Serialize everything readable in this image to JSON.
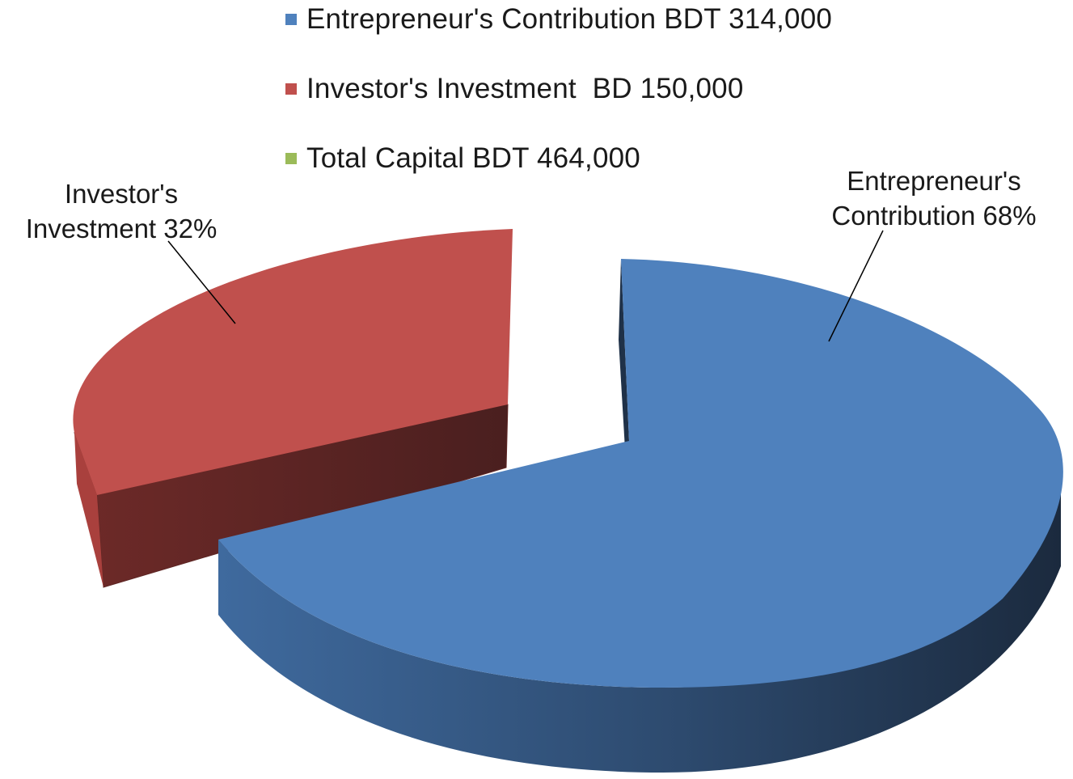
{
  "colors": {
    "entrepreneur": "#4f81bd",
    "entrepreneur_side_light": "#3f6a9e",
    "entrepreneur_side_dark": "#1f3148",
    "investor": "#c0504d",
    "investor_side": "#552323",
    "total": "#9bbb59"
  },
  "legend": {
    "items": [
      {
        "label": "Entrepreneur's Contribution BDT 314,000",
        "color": "#4f81bd"
      },
      {
        "label": "Investor's Investment  BD 150,000",
        "color": "#c0504d"
      },
      {
        "label": "Total Capital BDT 464,000",
        "color": "#9bbb59"
      }
    ]
  },
  "labels": {
    "investor": {
      "line1": "Investor's",
      "line2": "Investment 32%"
    },
    "entrepreneur": {
      "line1": "Entrepreneur's",
      "line2": "Contribution 68%"
    }
  },
  "chart_data": {
    "type": "pie",
    "style": "3d-exploded",
    "legend_position": "top",
    "series": [
      {
        "categories": [
          "Entrepreneur's Contribution BDT 314,000",
          "Investor's Investment  BD 150,000",
          "Total Capital BDT 464,000"
        ],
        "values": [
          314000,
          150000,
          0
        ],
        "percent_labels": [
          "68%",
          "32%",
          "0%"
        ]
      }
    ]
  }
}
